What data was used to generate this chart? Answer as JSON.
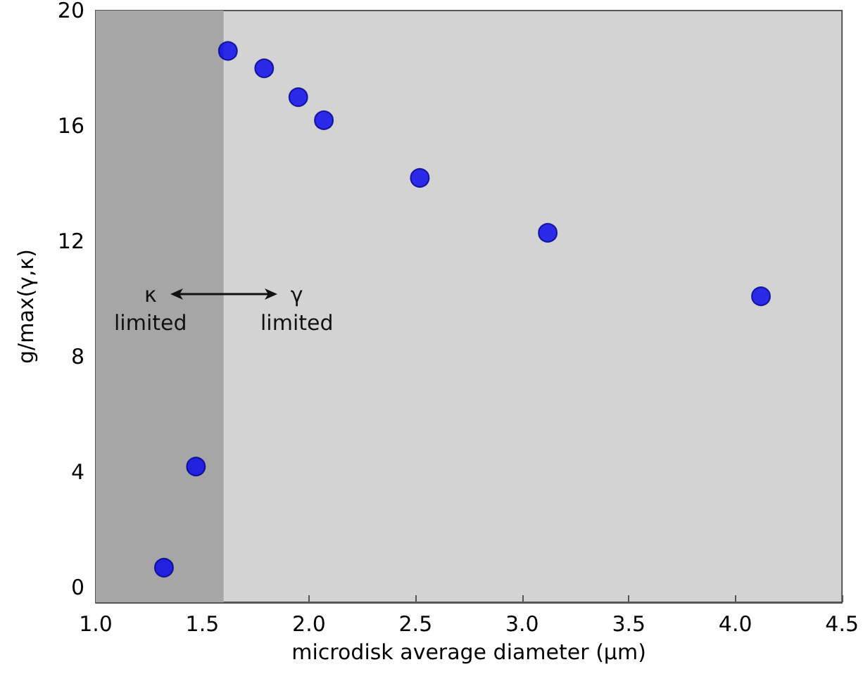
{
  "chart_data": {
    "type": "scatter",
    "xlabel": "microdisk average diameter (μm)",
    "ylabel": "g/max(γ,κ)",
    "x": [
      1.32,
      1.47,
      1.62,
      1.79,
      1.95,
      2.07,
      2.52,
      3.12,
      4.12
    ],
    "series": [
      {
        "color": "#0000ee",
        "values": [
          0.7,
          4.2,
          18.6,
          18.0,
          17.0,
          16.2,
          14.2,
          12.3,
          10.1
        ]
      }
    ],
    "xlim": [
      1.0,
      4.5
    ],
    "xticks": [
      {
        "value": 1,
        "label": "1.0"
      },
      {
        "value": 1.5,
        "label": "1.5"
      },
      {
        "value": 2,
        "label": "2.0"
      },
      {
        "value": 2.5,
        "label": "2.5"
      },
      {
        "value": 3,
        "label": "3.0"
      },
      {
        "value": 3.5,
        "label": "3.5"
      },
      {
        "value": 4,
        "label": "4.0"
      },
      {
        "value": 4.5,
        "label": "4.5"
      }
    ],
    "ylim": [
      -0.5,
      20
    ],
    "yticks": [
      0,
      4,
      8,
      12,
      16,
      20
    ],
    "bands": [
      {
        "axis": "x",
        "from": 1.0,
        "to": 1.6,
        "color": "#a6a6a6"
      }
    ],
    "annotations": [
      "κ\nlimited",
      "γ\nlimited"
    ],
    "marker": "circle"
  }
}
